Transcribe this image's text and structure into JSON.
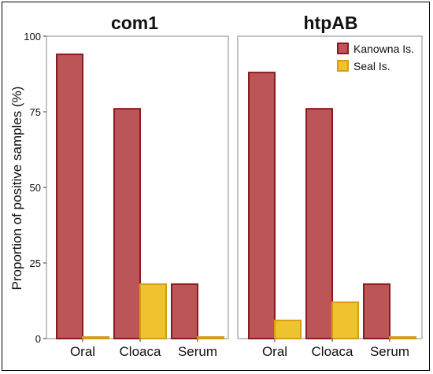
{
  "chart_data": {
    "type": "bar",
    "ylabel": "Proportion of positive samples (%)",
    "ylim": [
      0,
      100
    ],
    "yticks": [
      0,
      25,
      50,
      75,
      100
    ],
    "categories": [
      "Oral",
      "Cloaca",
      "Serum"
    ],
    "legend": {
      "placement": "top-right",
      "entries": [
        "Kanowna Is.",
        "Seal Is."
      ]
    },
    "colors": {
      "kanowna_fill": "#bc5557",
      "kanowna_stroke": "#8b1a1f",
      "seal_fill": "#efc22f",
      "seal_stroke": "#d89b14"
    },
    "panels": [
      {
        "title": "com1",
        "series": [
          {
            "name": "Kanowna Is.",
            "values": [
              94,
              76,
              18
            ]
          },
          {
            "name": "Seal Is.",
            "values": [
              0.5,
              18,
              0.5
            ]
          }
        ]
      },
      {
        "title": "htpAB",
        "series": [
          {
            "name": "Kanowna Is.",
            "values": [
              88,
              76,
              18
            ]
          },
          {
            "name": "Seal Is.",
            "values": [
              6,
              12,
              0.5
            ]
          }
        ]
      }
    ]
  }
}
